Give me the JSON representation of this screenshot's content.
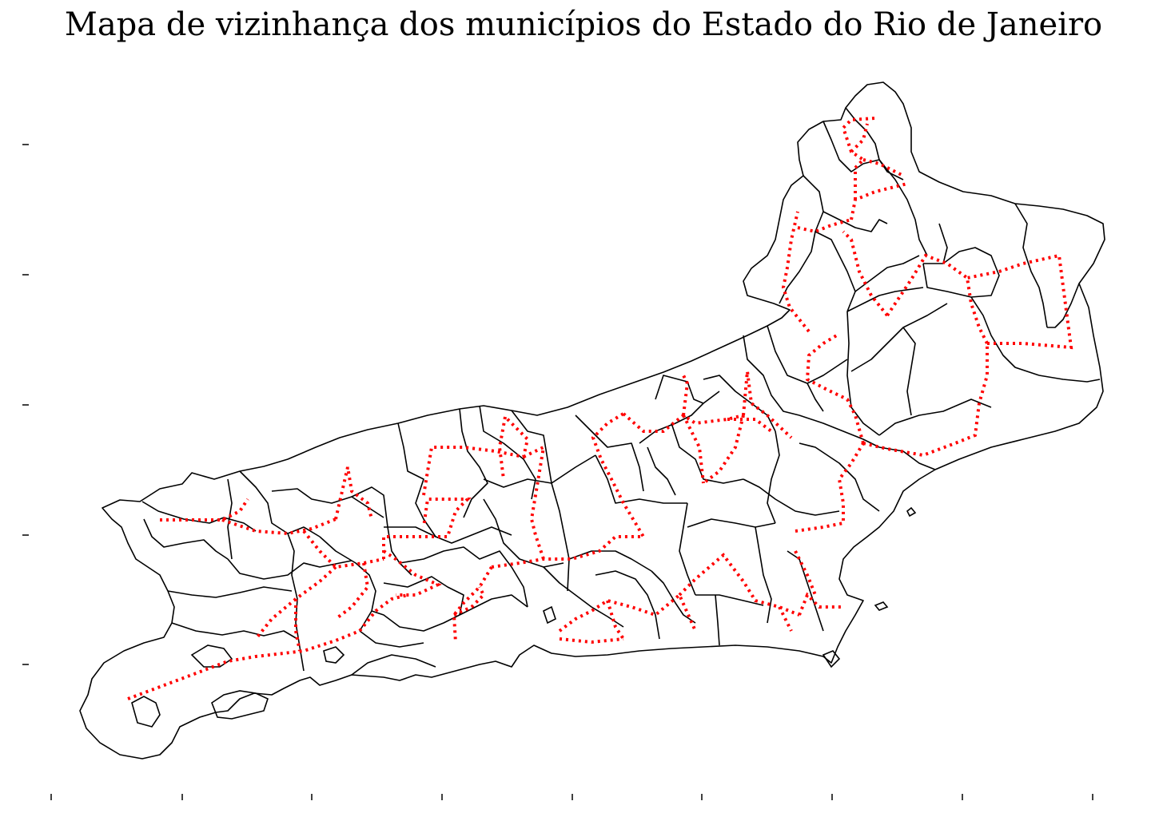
{
  "title": "Mapa de vizinhança dos municípios do Estado do Rio de Janeiro",
  "colors": {
    "boundary": "#000000",
    "neighbor_links": "#ff0000",
    "background": "#ffffff"
  },
  "layers": [
    {
      "name": "municipal-boundaries",
      "style": "black solid line"
    },
    {
      "name": "neighbor-links",
      "style": "red dotted line"
    }
  ],
  "axes": {
    "x_ticks": 9,
    "y_ticks": 5,
    "tick_labels_legible": false
  }
}
